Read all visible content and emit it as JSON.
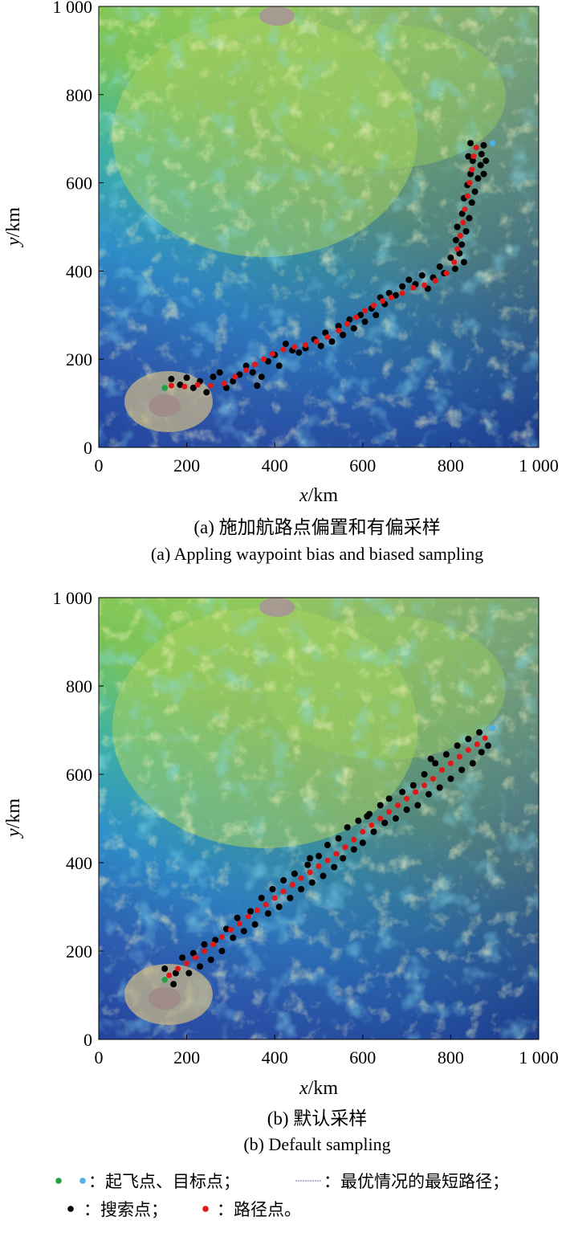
{
  "chart_data": [
    {
      "type": "scatter",
      "caption_cn": "(a) 施加航路点偏置和有偏采样",
      "caption_en": "(a) Appling waypoint bias and biased sampling",
      "xlabel_var": "x",
      "xlabel_unit": "/km",
      "ylabel_var": "y",
      "ylabel_unit": "/km",
      "xlim": [
        0,
        1000
      ],
      "ylim": [
        0,
        1000
      ],
      "xticks": [
        "0",
        "200",
        "400",
        "600",
        "800",
        "1 000"
      ],
      "yticks": [
        "0",
        "200",
        "400",
        "600",
        "800",
        "1 000"
      ],
      "start": [
        150,
        135
      ],
      "goal": [
        895,
        690
      ],
      "path_points": [
        [
          165,
          140
        ],
        [
          195,
          138
        ],
        [
          225,
          142
        ],
        [
          255,
          140
        ],
        [
          285,
          145
        ],
        [
          310,
          160
        ],
        [
          335,
          175
        ],
        [
          355,
          188
        ],
        [
          375,
          200
        ],
        [
          395,
          212
        ],
        [
          420,
          222
        ],
        [
          445,
          228
        ],
        [
          470,
          232
        ],
        [
          495,
          240
        ],
        [
          520,
          250
        ],
        [
          545,
          265
        ],
        [
          565,
          280
        ],
        [
          585,
          295
        ],
        [
          605,
          310
        ],
        [
          625,
          322
        ],
        [
          645,
          332
        ],
        [
          665,
          340
        ],
        [
          690,
          350
        ],
        [
          715,
          362
        ],
        [
          740,
          368
        ],
        [
          765,
          378
        ],
        [
          790,
          395
        ],
        [
          808,
          420
        ],
        [
          815,
          450
        ],
        [
          822,
          480
        ],
        [
          828,
          510
        ],
        [
          832,
          540
        ],
        [
          838,
          570
        ],
        [
          843,
          600
        ],
        [
          848,
          630
        ],
        [
          852,
          660
        ],
        [
          858,
          680
        ]
      ],
      "search_points": [
        [
          165,
          155
        ],
        [
          185,
          142
        ],
        [
          200,
          158
        ],
        [
          215,
          135
        ],
        [
          230,
          150
        ],
        [
          245,
          125
        ],
        [
          260,
          160
        ],
        [
          275,
          170
        ],
        [
          290,
          135
        ],
        [
          305,
          150
        ],
        [
          320,
          165
        ],
        [
          335,
          185
        ],
        [
          350,
          170
        ],
        [
          360,
          140
        ],
        [
          370,
          160
        ],
        [
          385,
          195
        ],
        [
          400,
          210
        ],
        [
          410,
          185
        ],
        [
          425,
          235
        ],
        [
          440,
          220
        ],
        [
          455,
          215
        ],
        [
          470,
          225
        ],
        [
          490,
          245
        ],
        [
          505,
          230
        ],
        [
          515,
          260
        ],
        [
          530,
          240
        ],
        [
          545,
          275
        ],
        [
          555,
          255
        ],
        [
          570,
          290
        ],
        [
          580,
          270
        ],
        [
          595,
          300
        ],
        [
          605,
          285
        ],
        [
          620,
          315
        ],
        [
          630,
          300
        ],
        [
          640,
          340
        ],
        [
          650,
          325
        ],
        [
          660,
          350
        ],
        [
          675,
          345
        ],
        [
          690,
          365
        ],
        [
          705,
          380
        ],
        [
          720,
          370
        ],
        [
          735,
          390
        ],
        [
          748,
          360
        ],
        [
          760,
          385
        ],
        [
          775,
          410
        ],
        [
          785,
          395
        ],
        [
          800,
          430
        ],
        [
          810,
          405
        ],
        [
          820,
          440
        ],
        [
          830,
          420
        ],
        [
          812,
          470
        ],
        [
          825,
          460
        ],
        [
          835,
          490
        ],
        [
          815,
          500
        ],
        [
          842,
          520
        ],
        [
          826,
          530
        ],
        [
          848,
          555
        ],
        [
          830,
          565
        ],
        [
          855,
          580
        ],
        [
          838,
          595
        ],
        [
          862,
          610
        ],
        [
          845,
          620
        ],
        [
          868,
          640
        ],
        [
          850,
          650
        ],
        [
          875,
          620
        ],
        [
          840,
          660
        ],
        [
          870,
          665
        ],
        [
          845,
          690
        ],
        [
          875,
          685
        ],
        [
          880,
          650
        ]
      ]
    },
    {
      "type": "scatter",
      "caption_cn": "(b) 默认采样",
      "caption_en": "(b) Default sampling",
      "xlabel_var": "x",
      "xlabel_unit": "/km",
      "ylabel_var": "y",
      "ylabel_unit": "/km",
      "xlim": [
        0,
        1000
      ],
      "ylim": [
        0,
        1000
      ],
      "xticks": [
        "0",
        "200",
        "400",
        "600",
        "800",
        "1 000"
      ],
      "yticks": [
        "0",
        "200",
        "400",
        "600",
        "800",
        "1 000"
      ],
      "start": [
        150,
        135
      ],
      "goal": [
        895,
        705
      ],
      "path_points": [
        [
          160,
          145
        ],
        [
          180,
          160
        ],
        [
          200,
          172
        ],
        [
          220,
          185
        ],
        [
          240,
          200
        ],
        [
          260,
          215
        ],
        [
          280,
          232
        ],
        [
          300,
          248
        ],
        [
          320,
          262
        ],
        [
          340,
          278
        ],
        [
          360,
          292
        ],
        [
          380,
          305
        ],
        [
          400,
          320
        ],
        [
          420,
          335
        ],
        [
          440,
          350
        ],
        [
          460,
          365
        ],
        [
          480,
          378
        ],
        [
          500,
          392
        ],
        [
          520,
          405
        ],
        [
          540,
          420
        ],
        [
          560,
          435
        ],
        [
          580,
          452
        ],
        [
          600,
          470
        ],
        [
          620,
          485
        ],
        [
          640,
          500
        ],
        [
          660,
          515
        ],
        [
          680,
          530
        ],
        [
          700,
          545
        ],
        [
          720,
          560
        ],
        [
          740,
          575
        ],
        [
          760,
          590
        ],
        [
          780,
          610
        ],
        [
          800,
          625
        ],
        [
          820,
          640
        ],
        [
          840,
          655
        ],
        [
          860,
          668
        ],
        [
          878,
          682
        ]
      ],
      "search_points": [
        [
          150,
          160
        ],
        [
          170,
          125
        ],
        [
          175,
          150
        ],
        [
          190,
          185
        ],
        [
          205,
          150
        ],
        [
          215,
          195
        ],
        [
          230,
          165
        ],
        [
          240,
          215
        ],
        [
          255,
          180
        ],
        [
          265,
          225
        ],
        [
          280,
          200
        ],
        [
          290,
          250
        ],
        [
          305,
          230
        ],
        [
          315,
          275
        ],
        [
          330,
          245
        ],
        [
          345,
          290
        ],
        [
          355,
          260
        ],
        [
          370,
          320
        ],
        [
          385,
          285
        ],
        [
          395,
          340
        ],
        [
          410,
          300
        ],
        [
          420,
          360
        ],
        [
          435,
          320
        ],
        [
          445,
          375
        ],
        [
          460,
          340
        ],
        [
          475,
          395
        ],
        [
          485,
          355
        ],
        [
          500,
          415
        ],
        [
          510,
          370
        ],
        [
          520,
          440
        ],
        [
          535,
          390
        ],
        [
          545,
          455
        ],
        [
          555,
          410
        ],
        [
          565,
          480
        ],
        [
          580,
          430
        ],
        [
          590,
          495
        ],
        [
          600,
          445
        ],
        [
          615,
          510
        ],
        [
          625,
          470
        ],
        [
          640,
          530
        ],
        [
          650,
          490
        ],
        [
          660,
          545
        ],
        [
          675,
          500
        ],
        [
          690,
          560
        ],
        [
          700,
          520
        ],
        [
          715,
          575
        ],
        [
          725,
          530
        ],
        [
          740,
          600
        ],
        [
          750,
          555
        ],
        [
          765,
          625
        ],
        [
          775,
          570
        ],
        [
          790,
          645
        ],
        [
          800,
          590
        ],
        [
          815,
          665
        ],
        [
          825,
          610
        ],
        [
          840,
          680
        ],
        [
          850,
          625
        ],
        [
          865,
          695
        ],
        [
          870,
          650
        ],
        [
          885,
          665
        ],
        [
          755,
          635
        ],
        [
          610,
          505
        ],
        [
          480,
          410
        ]
      ]
    }
  ],
  "legend": {
    "start_goal_label": "：起飞点、目标点；",
    "shortest_path_label": "：最优情况的最短路径；",
    "search_label": "：搜索点；",
    "path_label": "：路径点。"
  },
  "colors": {
    "start": "#22a245",
    "goal": "#4fb0e8",
    "search": "#000000",
    "path": "#e01818",
    "shortest_path_line": "#6a6aa8"
  }
}
